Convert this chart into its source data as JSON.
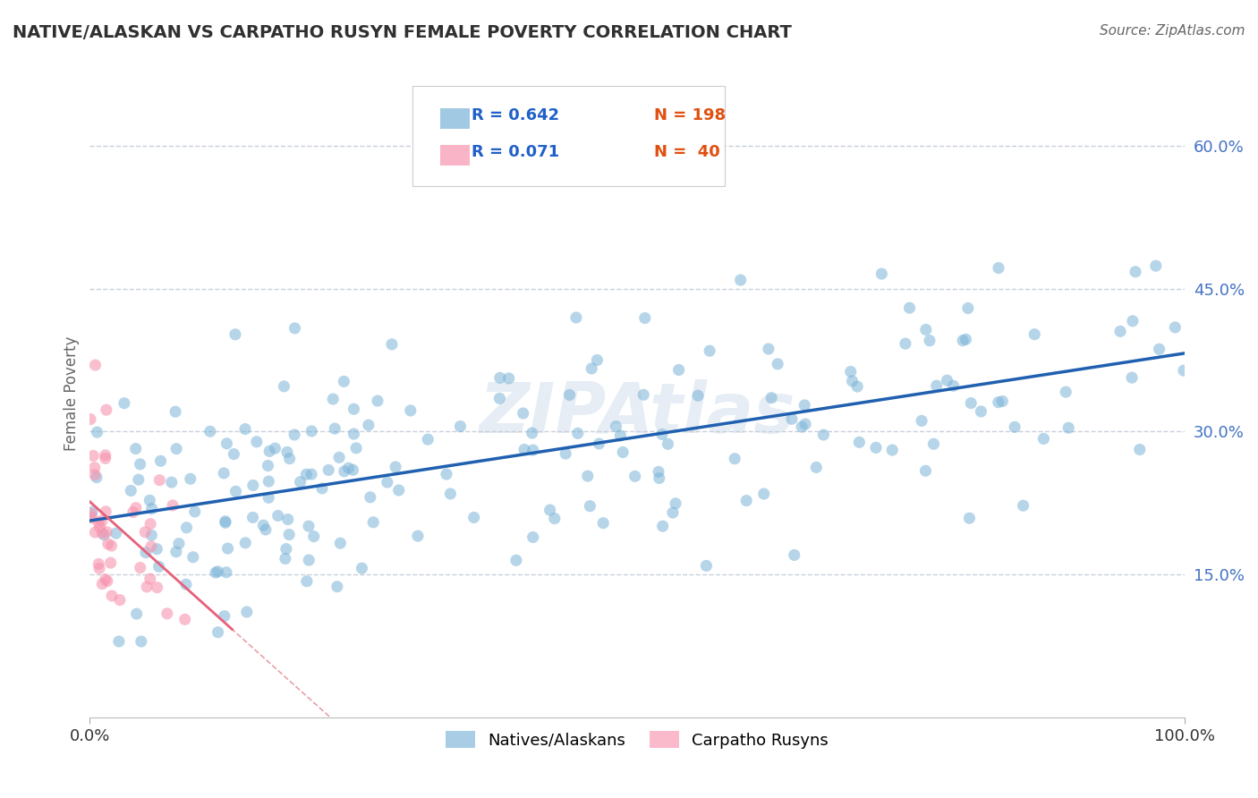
{
  "title": "NATIVE/ALASKAN VS CARPATHO RUSYN FEMALE POVERTY CORRELATION CHART",
  "source": "Source: ZipAtlas.com",
  "ylabel": "Female Poverty",
  "xlim": [
    0,
    1.0
  ],
  "ylim": [
    0.0,
    0.68
  ],
  "x_tick_labels": [
    "0.0%",
    "100.0%"
  ],
  "y_tick_labels": [
    "15.0%",
    "30.0%",
    "45.0%",
    "60.0%"
  ],
  "y_tick_vals": [
    0.15,
    0.3,
    0.45,
    0.6
  ],
  "legend_bottom": [
    "Natives/Alaskans",
    "Carpatho Rusyns"
  ],
  "watermark": "ZIPAtlas",
  "blue_color": "#7ab3d8",
  "pink_color": "#f895b0",
  "blue_line_color": "#2060b0",
  "pink_line_color": "#e8607a",
  "dashed_color": "#e8a0a8",
  "blue_R": 0.642,
  "pink_R": 0.071,
  "blue_N": 198,
  "pink_N": 40,
  "legend_R_color": "#2060c8",
  "legend_N_color": "#e05010",
  "background_color": "#ffffff",
  "grid_color": "#c8d0dc",
  "title_color": "#303030",
  "source_color": "#666666",
  "ylabel_color": "#666666",
  "ytick_color": "#4472c4",
  "xtick_color": "#333333"
}
